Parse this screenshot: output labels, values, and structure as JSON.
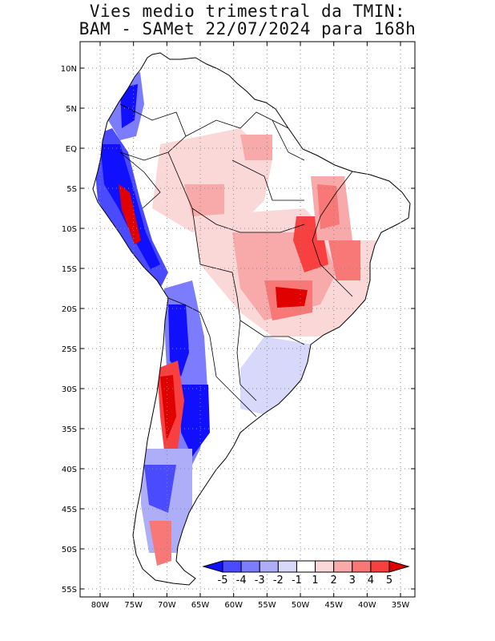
{
  "title_line1": "Vies medio trimestral da TMIN:",
  "title_line2": "BAM - SAMet 22/07/2024  para 168h",
  "lat_labels": [
    "10N",
    "5N",
    "EQ",
    "5S",
    "10S",
    "15S",
    "20S",
    "25S",
    "30S",
    "35S",
    "40S",
    "45S",
    "50S",
    "55S"
  ],
  "lon_labels": [
    "80W",
    "75W",
    "70W",
    "65W",
    "60W",
    "55W",
    "50W",
    "45W",
    "40W",
    "35W"
  ],
  "colorbar": {
    "labels": [
      "-5",
      "-4",
      "-3",
      "-2",
      "-1",
      "1",
      "2",
      "3",
      "4",
      "5"
    ],
    "colors": [
      "#1010ff",
      "#4a4aff",
      "#7c7cff",
      "#aeaef8",
      "#d8d8fa",
      "#ffffff",
      "#fad8d8",
      "#f8aaaa",
      "#f87878",
      "#f84040",
      "#e00000"
    ]
  }
}
